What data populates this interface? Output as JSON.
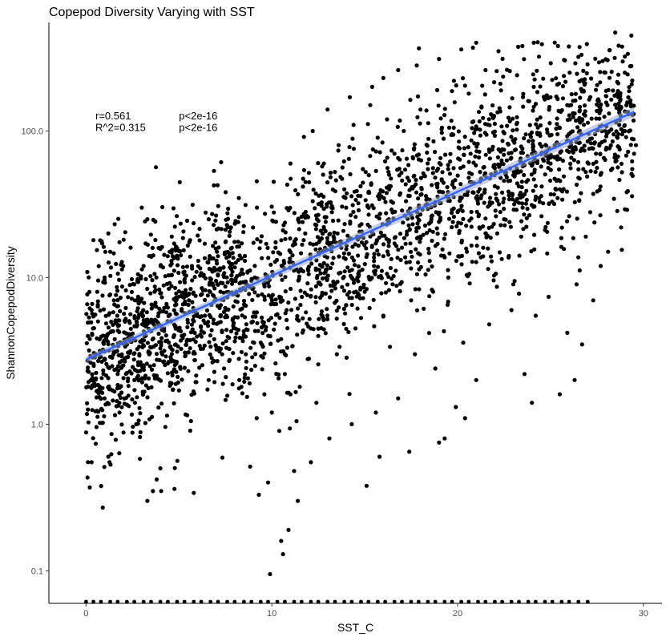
{
  "chart_data": {
    "type": "scatter",
    "title": "Copepod Diversity Varying with SST",
    "xlabel": "SST_C",
    "ylabel": "ShannonCopepodDiversity",
    "xlim": [
      -2,
      31
    ],
    "ylim": [
      0.06,
      550
    ],
    "y_scale": "log10",
    "x_ticks": [
      0,
      10,
      20,
      30
    ],
    "x_tick_labels": [
      "0",
      "10",
      "20",
      "30"
    ],
    "y_ticks": [
      0.1,
      1,
      10,
      100
    ],
    "y_tick_labels": [
      "0.1",
      "1.0",
      "10.0",
      "100.0"
    ],
    "grid": false,
    "legend": "none",
    "point_color": "#000000",
    "fit_line_color": "#3366ff",
    "fit_band_color": "#9aa8c8",
    "fit_line": {
      "x": [
        0,
        29.5
      ],
      "y": [
        2.75,
        135
      ]
    },
    "annotations": [
      {
        "text": "r=0.561",
        "x": 0.5,
        "y": 120
      },
      {
        "text": "R^2=0.315",
        "x": 0.5,
        "y": 100
      },
      {
        "text": "p<2e-16",
        "x": 5.0,
        "y": 120
      },
      {
        "text": "p<2e-16",
        "x": 5.0,
        "y": 100
      }
    ],
    "series": [
      {
        "name": "",
        "points": [
          [
            0.2,
            0.37
          ],
          [
            0.9,
            0.27
          ],
          [
            3.3,
            0.3
          ],
          [
            3.6,
            0.35
          ],
          [
            3.8,
            0.42
          ],
          [
            5.8,
            0.34
          ],
          [
            0.3,
            0.55
          ],
          [
            1.2,
            0.6
          ],
          [
            2.9,
            0.58
          ],
          [
            4.0,
            0.5
          ],
          [
            9.3,
            0.33
          ],
          [
            9.9,
            0.095
          ],
          [
            10.6,
            0.13
          ],
          [
            10.9,
            0.19
          ],
          [
            10.5,
            0.16
          ],
          [
            11.4,
            0.3
          ],
          [
            11.2,
            0.48
          ],
          [
            9.8,
            0.4
          ],
          [
            12.1,
            0.55
          ],
          [
            15.1,
            0.38
          ],
          [
            15.8,
            0.6
          ],
          [
            17.4,
            0.65
          ],
          [
            19.3,
            0.8
          ],
          [
            19.0,
            0.75
          ],
          [
            20.4,
            1.1
          ],
          [
            24.0,
            1.4
          ],
          [
            25.5,
            1.6
          ],
          [
            26.3,
            2.0
          ],
          [
            21.0,
            2.0
          ],
          [
            23.6,
            2.2
          ],
          [
            26.7,
            3.5
          ],
          [
            27.3,
            7.0
          ],
          [
            23.0,
            9.0
          ],
          [
            24.2,
            5.5
          ],
          [
            25.9,
            4.2
          ],
          [
            28.1,
            15.0
          ],
          [
            28.8,
            22.0
          ],
          [
            29.4,
            55.0
          ],
          [
            29.6,
            80.0
          ],
          [
            29.2,
            130.0
          ],
          [
            29.0,
            250.0
          ],
          [
            28.6,
            180.0
          ],
          [
            27.8,
            300.0
          ],
          [
            26.5,
            320.0
          ],
          [
            25.4,
            380.0
          ],
          [
            24.1,
            400.0
          ],
          [
            22.2,
            350.0
          ],
          [
            21.0,
            400.0
          ],
          [
            20.2,
            360.0
          ],
          [
            19.0,
            310.0
          ],
          [
            17.8,
            280.0
          ],
          [
            16.8,
            260.0
          ],
          [
            16.0,
            230.0
          ],
          [
            15.4,
            200.0
          ],
          [
            14.2,
            170.0
          ],
          [
            13.0,
            140.0
          ],
          [
            12.2,
            100.0
          ],
          [
            11.0,
            60.0
          ],
          [
            10.1,
            45.0
          ],
          [
            9.2,
            30.0
          ],
          [
            7.8,
            22.0
          ],
          [
            6.6,
            25.0
          ],
          [
            3.0,
            30.0
          ],
          [
            3.3,
            25.0
          ],
          [
            1.2,
            20.0
          ],
          [
            0.4,
            18.0
          ],
          [
            2.0,
            12.0
          ],
          [
            4.5,
            15.0
          ],
          [
            5.6,
            18.0
          ],
          [
            7.1,
            14.0
          ],
          [
            8.7,
            11.0
          ],
          [
            10.2,
            16.0
          ],
          [
            11.8,
            20.0
          ],
          [
            12.9,
            24.0
          ],
          [
            14.0,
            30.0
          ],
          [
            15.2,
            38.0
          ],
          [
            16.4,
            42.0
          ],
          [
            17.3,
            48.0
          ],
          [
            18.4,
            55.0
          ],
          [
            19.6,
            62.0
          ],
          [
            20.7,
            70.0
          ],
          [
            21.9,
            78.0
          ],
          [
            23.1,
            88.0
          ],
          [
            24.3,
            95.0
          ],
          [
            25.5,
            105.0
          ],
          [
            26.7,
            118.0
          ],
          [
            27.9,
            125.0
          ],
          [
            28.7,
            110.0
          ],
          [
            26.2,
            75.0
          ],
          [
            25.0,
            60.0
          ],
          [
            23.7,
            45.0
          ],
          [
            22.4,
            38.0
          ],
          [
            21.1,
            32.0
          ],
          [
            19.8,
            26.0
          ],
          [
            18.5,
            21.0
          ],
          [
            17.2,
            17.0
          ],
          [
            16.0,
            14.0
          ],
          [
            14.7,
            11.0
          ],
          [
            13.4,
            9.0
          ],
          [
            12.1,
            7.5
          ],
          [
            10.8,
            6.0
          ],
          [
            9.5,
            5.0
          ],
          [
            8.2,
            4.4
          ],
          [
            6.9,
            3.8
          ],
          [
            5.6,
            3.3
          ],
          [
            4.3,
            2.9
          ],
          [
            3.0,
            2.5
          ],
          [
            1.7,
            2.2
          ],
          [
            0.4,
            2.0
          ],
          [
            0.1,
            4.0
          ],
          [
            0.3,
            6.0
          ],
          [
            0.6,
            8.0
          ],
          [
            1.0,
            10.0
          ],
          [
            1.5,
            7.0
          ],
          [
            2.1,
            5.0
          ],
          [
            2.6,
            9.0
          ],
          [
            3.1,
            12.0
          ],
          [
            3.7,
            6.5
          ],
          [
            4.2,
            4.5
          ],
          [
            4.8,
            8.5
          ],
          [
            5.3,
            10.5
          ],
          [
            5.9,
            7.5
          ],
          [
            6.4,
            5.5
          ],
          [
            7.0,
            9.5
          ],
          [
            7.5,
            6.0
          ],
          [
            8.1,
            8.0
          ],
          [
            8.6,
            3.0
          ],
          [
            9.1,
            2.5
          ],
          [
            9.6,
            1.6
          ],
          [
            10.0,
            1.2
          ],
          [
            10.4,
            0.9
          ],
          [
            10.7,
            2.2
          ],
          [
            11.1,
            3.4
          ],
          [
            11.5,
            1.8
          ],
          [
            12.0,
            2.8
          ],
          [
            12.5,
            4.0
          ],
          [
            13.0,
            5.2
          ],
          [
            13.5,
            3.0
          ],
          [
            14.0,
            6.5
          ],
          [
            14.5,
            4.5
          ],
          [
            15.0,
            8.0
          ],
          [
            15.5,
            12.0
          ],
          [
            16.0,
            5.5
          ],
          [
            16.5,
            9.0
          ],
          [
            17.0,
            16.0
          ],
          [
            17.5,
            7.0
          ],
          [
            18.0,
            19.0
          ],
          [
            18.5,
            13.0
          ],
          [
            19.0,
            24.0
          ],
          [
            19.5,
            10.0
          ],
          [
            20.0,
            28.0
          ],
          [
            20.5,
            15.0
          ],
          [
            21.0,
            35.0
          ],
          [
            21.5,
            20.0
          ],
          [
            22.0,
            42.0
          ],
          [
            22.5,
            25.0
          ],
          [
            23.0,
            50.0
          ],
          [
            23.5,
            30.0
          ],
          [
            24.0,
            58.0
          ],
          [
            24.5,
            36.0
          ],
          [
            25.0,
            66.0
          ],
          [
            25.5,
            40.0
          ],
          [
            26.0,
            72.0
          ],
          [
            26.5,
            48.0
          ],
          [
            27.0,
            85.0
          ],
          [
            27.5,
            56.0
          ],
          [
            28.0,
            92.0
          ],
          [
            28.5,
            62.0
          ],
          [
            29.0,
            100.0
          ],
          [
            29.5,
            70.0
          ],
          [
            1.3,
            15.0
          ],
          [
            2.4,
            16.0
          ],
          [
            3.5,
            14.0
          ],
          [
            4.6,
            13.0
          ],
          [
            5.7,
            12.0
          ],
          [
            6.8,
            11.0
          ],
          [
            7.9,
            9.5
          ],
          [
            9.0,
            8.5
          ],
          [
            2.2,
            3.5
          ],
          [
            3.4,
            3.0
          ],
          [
            4.4,
            2.6
          ],
          [
            5.5,
            2.3
          ],
          [
            6.6,
            2.0
          ],
          [
            7.7,
            2.7
          ],
          [
            8.8,
            1.9
          ],
          [
            1.0,
            1.5
          ],
          [
            1.8,
            1.2
          ],
          [
            2.7,
            1.0
          ],
          [
            3.9,
            1.3
          ],
          [
            5.0,
            1.7
          ],
          [
            12.8,
            60.0
          ],
          [
            13.6,
            80.0
          ],
          [
            14.4,
            110.0
          ],
          [
            15.3,
            150.0
          ],
          [
            16.2,
            120.0
          ],
          [
            17.1,
            100.0
          ],
          [
            18.0,
            140.0
          ],
          [
            18.9,
            190.0
          ],
          [
            19.8,
            220.0
          ],
          [
            20.6,
            180.0
          ],
          [
            21.5,
            260.0
          ],
          [
            22.3,
            210.0
          ],
          [
            23.2,
            240.0
          ],
          [
            24.1,
            200.0
          ],
          [
            25.0,
            170.0
          ],
          [
            25.9,
            150.0
          ],
          [
            26.8,
            130.0
          ],
          [
            27.6,
            160.0
          ],
          [
            15.7,
            90.0
          ],
          [
            16.6,
            70.0
          ],
          [
            17.6,
            65.0
          ],
          [
            18.7,
            85.0
          ],
          [
            19.7,
            95.0
          ],
          [
            20.8,
            115.0
          ],
          [
            21.8,
            130.0
          ],
          [
            22.8,
            145.0
          ],
          [
            23.8,
            160.0
          ],
          [
            24.8,
            175.0
          ],
          [
            14.9,
            55.0
          ],
          [
            13.9,
            40.0
          ],
          [
            12.6,
            32.0
          ],
          [
            11.6,
            26.0
          ],
          [
            10.6,
            21.0
          ],
          [
            9.7,
            17.0
          ],
          [
            13.2,
            16.0
          ],
          [
            14.6,
            19.0
          ],
          [
            16.3,
            25.0
          ],
          [
            17.9,
            30.0
          ],
          [
            19.4,
            36.0
          ],
          [
            20.9,
            44.0
          ],
          [
            22.6,
            52.0
          ],
          [
            24.6,
            64.0
          ],
          [
            26.1,
            80.0
          ],
          [
            27.4,
            95.0
          ],
          [
            17.7,
            3.0
          ],
          [
            18.8,
            2.4
          ],
          [
            20.3,
            3.6
          ],
          [
            21.7,
            4.8
          ],
          [
            22.9,
            6.0
          ],
          [
            24.9,
            7.4
          ],
          [
            26.4,
            9.0
          ],
          [
            27.7,
            12.0
          ],
          [
            16.8,
            1.5
          ],
          [
            15.6,
            1.2
          ],
          [
            14.3,
            1.0
          ],
          [
            13.1,
            0.8
          ],
          [
            12.4,
            1.4
          ],
          [
            11.0,
            1.6
          ],
          [
            10.2,
            2.6
          ],
          [
            9.4,
            3.6
          ]
        ]
      }
    ],
    "zero_row_x": [
      0.0,
      0.4,
      0.8,
      1.3,
      1.7,
      2.2,
      2.6,
      3.1,
      3.5,
      4.0,
      4.4,
      4.9,
      5.3,
      5.8,
      6.2,
      6.7,
      7.1,
      7.6,
      8.0,
      8.5,
      8.9,
      9.4,
      9.8,
      10.3,
      10.7,
      11.2,
      11.6,
      12.1,
      12.5,
      13.0,
      13.4,
      13.9,
      14.3,
      14.8,
      15.2,
      15.7,
      16.1,
      16.6,
      17.0,
      17.5,
      17.9,
      18.4,
      18.8,
      19.3,
      19.7,
      20.2,
      20.6,
      21.1,
      21.5,
      22.0,
      22.4,
      22.9,
      23.3,
      23.8,
      24.2,
      24.7,
      25.1,
      25.6,
      26.0,
      26.5,
      27.0
    ]
  }
}
